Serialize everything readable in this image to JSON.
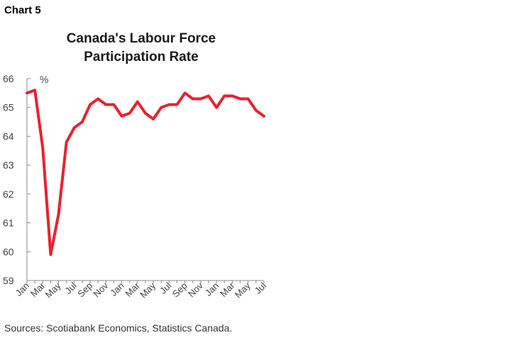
{
  "header": {
    "chart_label": "Chart 5",
    "title_line1": "Canada's Labour Force",
    "title_line2": "Participation Rate",
    "unit": "%"
  },
  "footer": {
    "source": "Sources: Scotiabank Economics, Statistics Canada."
  },
  "chart_data": {
    "type": "line",
    "title": "Canada's Labour Force Participation Rate",
    "ylabel": "%",
    "xlabel": "",
    "ylim": [
      59,
      66
    ],
    "yticks": [
      59,
      60,
      61,
      62,
      63,
      64,
      65,
      66
    ],
    "grid": false,
    "legend": "none",
    "color": "#e8222e",
    "x": [
      "Jan",
      "Feb",
      "Mar",
      "Apr",
      "May",
      "Jun",
      "Jul",
      "Aug",
      "Sep",
      "Oct",
      "Nov",
      "Dec",
      "Jan",
      "Feb",
      "Mar",
      "Apr",
      "May",
      "Jun",
      "Jul",
      "Aug",
      "Sep",
      "Oct",
      "Nov",
      "Dec",
      "Jan",
      "Feb",
      "Mar",
      "Apr",
      "May",
      "Jun",
      "Jul"
    ],
    "xtick_labels": [
      "Jan",
      "Mar",
      "May",
      "Jul",
      "Sep",
      "Nov",
      "Jan",
      "Mar",
      "May",
      "Jul",
      "Sep",
      "Nov",
      "Jan",
      "Mar",
      "May",
      "Jul"
    ],
    "series": [
      {
        "values": [
          65.5,
          65.6,
          63.6,
          59.9,
          61.3,
          63.8,
          64.3,
          64.5,
          65.1,
          65.3,
          65.1,
          65.1,
          64.7,
          64.8,
          65.2,
          64.8,
          64.6,
          65.0,
          65.1,
          65.1,
          65.5,
          65.3,
          65.3,
          65.4,
          65.0,
          65.4,
          65.4,
          65.3,
          65.3,
          64.9,
          64.7
        ]
      }
    ]
  }
}
